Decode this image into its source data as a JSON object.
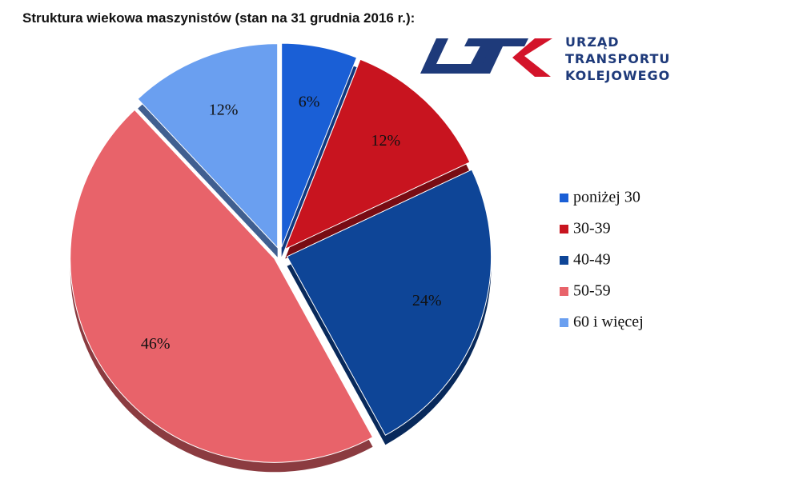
{
  "chart_data": {
    "type": "pie",
    "title": "Struktura wiekowa maszynistów (stan na 31 grudnia 2016 r.):",
    "categories": [
      "poniżej 30",
      "30-39",
      "40-49",
      "50-59",
      "60 i więcej"
    ],
    "values": [
      6,
      12,
      24,
      46,
      12
    ],
    "value_labels": [
      "6%",
      "12%",
      "24%",
      "46%",
      "12%"
    ],
    "colors": [
      "#1a5fd6",
      "#c8141f",
      "#0e4597",
      "#e8636a",
      "#6a9ff0"
    ],
    "legend": "right"
  },
  "logo_text": [
    "URZĄD",
    "TRANSPORTU",
    "KOLEJOWEGO"
  ]
}
